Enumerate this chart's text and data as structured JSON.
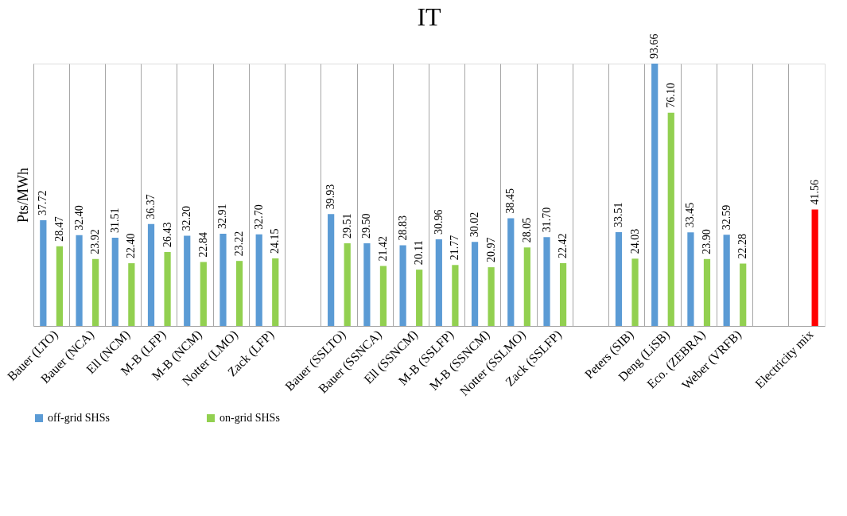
{
  "chart_data": {
    "type": "bar",
    "title": "IT",
    "ylabel": "Pts/MWh",
    "categories": [
      "Bauer (LTO)",
      "Bauer (NCA)",
      "Ell (NCM)",
      "M-B (LFP)",
      "M-B (NCM)",
      "Notter (LMO)",
      "Zack (LFP)",
      null,
      "Bauer (SSLTO)",
      "Bauer (SSNCA)",
      "Ell (SSNCM)",
      "M-B (SSLFP)",
      "M-B (SSNCM)",
      "Notter (SSLMO)",
      "Zack (SSLFP)",
      null,
      "Peters (SIB)",
      "Deng (LiSB)",
      "Eco. (ZEBRA)",
      "Weber (VRFB)",
      null,
      "Electricity mix"
    ],
    "series": [
      {
        "name": "off-grid SHSs",
        "color": "#5b9bd5",
        "values": [
          37.72,
          32.4,
          31.51,
          36.37,
          32.2,
          32.91,
          32.7,
          null,
          39.93,
          29.5,
          28.83,
          30.96,
          30.02,
          38.45,
          31.7,
          null,
          33.51,
          93.66,
          33.45,
          32.59,
          null,
          null
        ],
        "value_labels": [
          "37.72",
          "32.40",
          "31.51",
          "36.37",
          "32.20",
          "32.91",
          "32.70",
          null,
          "39.93",
          "29.50",
          "28.83",
          "30.96",
          "30.02",
          "38.45",
          "31.70",
          null,
          "33.51",
          "93.66",
          "33.45",
          "32.59",
          null,
          null
        ]
      },
      {
        "name": "on-grid SHSs",
        "color": "#92d050",
        "colors": [
          "#92d050",
          "#92d050",
          "#92d050",
          "#92d050",
          "#92d050",
          "#92d050",
          "#92d050",
          "#92d050",
          "#92d050",
          "#92d050",
          "#92d050",
          "#92d050",
          "#92d050",
          "#92d050",
          "#92d050",
          "#92d050",
          "#92d050",
          "#92d050",
          "#92d050",
          "#92d050",
          "#92d050",
          "#ff0000"
        ],
        "values": [
          28.47,
          23.92,
          22.4,
          26.43,
          22.84,
          23.22,
          24.15,
          null,
          29.51,
          21.42,
          20.11,
          21.77,
          20.97,
          28.05,
          22.42,
          null,
          24.03,
          76.1,
          23.9,
          22.28,
          null,
          41.56
        ],
        "value_labels": [
          "28.47",
          "23.92",
          "22.40",
          "26.43",
          "22.84",
          "23.22",
          "24.15",
          null,
          "29.51",
          "21.42",
          "20.11",
          "21.77",
          "20.97",
          "28.05",
          "22.42",
          null,
          "24.03",
          "76.10",
          "23.90",
          "22.28",
          null,
          "41.56"
        ]
      }
    ],
    "grid": "x",
    "legend": "bottom"
  }
}
